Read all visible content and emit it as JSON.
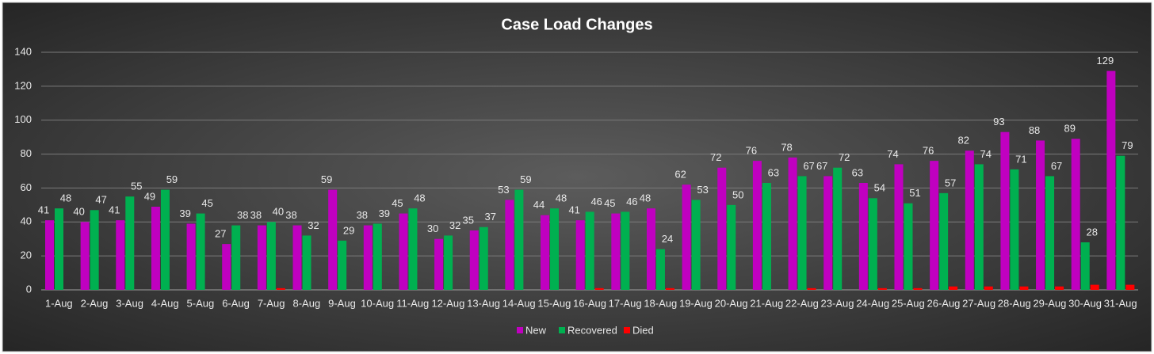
{
  "chart_data": {
    "type": "bar",
    "title": "Case Load Changes",
    "categories": [
      "1-Aug",
      "2-Aug",
      "3-Aug",
      "4-Aug",
      "5-Aug",
      "6-Aug",
      "7-Aug",
      "8-Aug",
      "9-Aug",
      "10-Aug",
      "11-Aug",
      "12-Aug",
      "13-Aug",
      "14-Aug",
      "15-Aug",
      "16-Aug",
      "17-Aug",
      "18-Aug",
      "19-Aug",
      "20-Aug",
      "21-Aug",
      "22-Aug",
      "23-Aug",
      "24-Aug",
      "25-Aug",
      "26-Aug",
      "27-Aug",
      "28-Aug",
      "29-Aug",
      "30-Aug",
      "31-Aug"
    ],
    "series": [
      {
        "name": "New",
        "color": "#c000c0",
        "labels": true,
        "values": [
          41,
          40,
          41,
          49,
          39,
          27,
          38,
          38,
          59,
          38,
          45,
          30,
          35,
          53,
          44,
          41,
          45,
          48,
          62,
          72,
          76,
          78,
          67,
          63,
          74,
          76,
          82,
          93,
          88,
          89,
          129
        ]
      },
      {
        "name": "Recovered",
        "color": "#00b050",
        "labels": true,
        "values": [
          48,
          47,
          55,
          59,
          45,
          38,
          40,
          32,
          29,
          39,
          48,
          32,
          37,
          59,
          48,
          46,
          46,
          24,
          53,
          50,
          63,
          67,
          72,
          54,
          51,
          57,
          74,
          71,
          67,
          28,
          79
        ]
      },
      {
        "name": "Died",
        "color": "#ff0000",
        "labels": false,
        "values": [
          0,
          0,
          0,
          0,
          0,
          0,
          1,
          0,
          0,
          0,
          0,
          0,
          0,
          0,
          0,
          1,
          0,
          1,
          0,
          0,
          0,
          1,
          0,
          1,
          1,
          2,
          2,
          2,
          2,
          3,
          3
        ]
      }
    ],
    "ylim": [
      0,
      140
    ],
    "yticks": [
      0,
      20,
      40,
      60,
      80,
      100,
      120,
      140
    ],
    "grid": true,
    "legend": "bottom"
  }
}
